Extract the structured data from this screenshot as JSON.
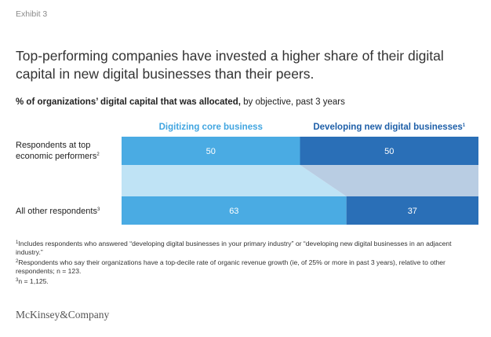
{
  "exhibit_label": "Exhibit 3",
  "headline": "Top-performing companies have invested a higher share of their digital capital in new digital businesses than their peers.",
  "subtitle": {
    "bold": "% of organizations’ digital capital that was allocated,",
    "rest": " by objective, past 3 years"
  },
  "colors": {
    "series_1": "#4aabe3",
    "series_2": "#2a6fb7",
    "connector_1": "#bfe3f5",
    "connector_2": "#b9cde3",
    "series_1_label": "#41a5e0",
    "series_2_label": "#1e5fa8"
  },
  "chart_data": {
    "type": "bar",
    "orientation": "horizontal",
    "stacked": true,
    "xlim": [
      0,
      100
    ],
    "categories": [
      {
        "label": "Respondents at top economic performers",
        "footnote": "2"
      },
      {
        "label": "All other respondents",
        "footnote": "3"
      }
    ],
    "series": [
      {
        "name": "Digitizing core business",
        "footnote": "",
        "values": [
          50,
          63
        ]
      },
      {
        "name": "Developing new digital businesses",
        "footnote": "1",
        "values": [
          50,
          37
        ]
      }
    ]
  },
  "footnotes": [
    {
      "mark": "1",
      "text": "Includes respondents who answered “developing digital businesses in your primary industry” or “developing new digital businesses in an adjacent industry.”"
    },
    {
      "mark": "2",
      "text": "Respondents who say their organizations have a top-decile rate of organic revenue growth (ie, of 25% or more in past 3 years), relative to other respondents; n = 123."
    },
    {
      "mark": "3",
      "text": "n = 1,125."
    }
  ],
  "logo_text": "McKinsey&Company"
}
